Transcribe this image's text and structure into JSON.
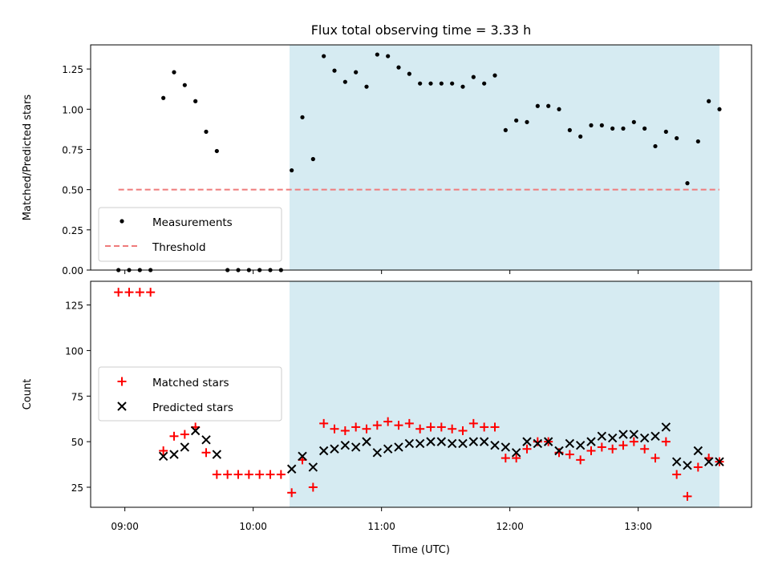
{
  "chart_data": [
    {
      "type": "scatter",
      "title": "Flux total observing time = 3.33 h",
      "xlabel": "",
      "ylabel": "Matched/Predicted stars",
      "ylim": [
        0,
        1.4
      ],
      "xlim": [
        "08:44",
        "13:53"
      ],
      "yticks": [
        0.0,
        0.25,
        0.5,
        0.75,
        1.0,
        1.25
      ],
      "ytick_labels": [
        "0.00",
        "0.25",
        "0.50",
        "0.75",
        "1.00",
        "1.25"
      ],
      "legend": [
        "Measurements",
        "Threshold"
      ],
      "legend_loc": "lower left",
      "grid": false,
      "shaded_interval": [
        "10:17",
        "13:38"
      ],
      "colors": {
        "measurements": "#000000",
        "threshold": "#ef7b7b",
        "shade": "#add8e6"
      },
      "series": [
        {
          "name": "Measurements",
          "x": [
            "08:57",
            "09:02",
            "09:07",
            "09:12",
            "09:18",
            "09:23",
            "09:28",
            "09:33",
            "09:38",
            "09:43",
            "09:48",
            "09:53",
            "09:58",
            "10:03",
            "10:08",
            "10:13",
            "10:18",
            "10:23",
            "10:28",
            "10:33",
            "10:38",
            "10:43",
            "10:48",
            "10:53",
            "10:58",
            "11:03",
            "11:08",
            "11:13",
            "11:18",
            "11:23",
            "11:28",
            "11:33",
            "11:38",
            "11:43",
            "11:48",
            "11:53",
            "11:58",
            "12:03",
            "12:08",
            "12:13",
            "12:18",
            "12:23",
            "12:28",
            "12:33",
            "12:38",
            "12:43",
            "12:48",
            "12:53",
            "12:58",
            "13:03",
            "13:08",
            "13:13",
            "13:18",
            "13:23",
            "13:28",
            "13:33",
            "13:38"
          ],
          "values": [
            0.0,
            0.0,
            0.0,
            0.0,
            1.07,
            1.23,
            1.15,
            1.05,
            0.86,
            0.74,
            0.0,
            0.0,
            0.0,
            0.0,
            0.0,
            0.0,
            0.62,
            0.95,
            0.69,
            1.33,
            1.24,
            1.17,
            1.23,
            1.14,
            1.34,
            1.33,
            1.26,
            1.22,
            1.16,
            1.16,
            1.16,
            1.16,
            1.14,
            1.2,
            1.16,
            1.21,
            0.87,
            0.93,
            0.92,
            1.02,
            1.02,
            1.0,
            0.87,
            0.83,
            0.9,
            0.9,
            0.88,
            0.88,
            0.92,
            0.88,
            0.77,
            0.86,
            0.82,
            0.54,
            0.8,
            1.05,
            1.0
          ]
        },
        {
          "name": "Threshold",
          "style": "dashed",
          "x": [
            "08:57",
            "13:38"
          ],
          "values": [
            0.5,
            0.5
          ]
        }
      ]
    },
    {
      "type": "scatter",
      "title": "",
      "xlabel": "Time (UTC)",
      "ylabel": "Count",
      "ylim": [
        14,
        138
      ],
      "xlim": [
        "08:44",
        "13:53"
      ],
      "xticks": [
        "09:00",
        "10:00",
        "11:00",
        "12:00",
        "13:00"
      ],
      "yticks": [
        25,
        50,
        75,
        100,
        125
      ],
      "legend": [
        "Matched stars",
        "Predicted stars"
      ],
      "legend_loc": "center left",
      "grid": false,
      "shaded_interval": [
        "10:17",
        "13:38"
      ],
      "colors": {
        "matched": "#ff0000",
        "predicted": "#000000",
        "shade": "#add8e6"
      },
      "series": [
        {
          "name": "Matched stars",
          "marker": "+",
          "x": [
            "08:57",
            "09:02",
            "09:07",
            "09:12",
            "09:18",
            "09:23",
            "09:28",
            "09:33",
            "09:38",
            "09:43",
            "09:48",
            "09:53",
            "09:58",
            "10:03",
            "10:08",
            "10:13",
            "10:18",
            "10:23",
            "10:28",
            "10:33",
            "10:38",
            "10:43",
            "10:48",
            "10:53",
            "10:58",
            "11:03",
            "11:08",
            "11:13",
            "11:18",
            "11:23",
            "11:28",
            "11:33",
            "11:38",
            "11:43",
            "11:48",
            "11:53",
            "11:58",
            "12:03",
            "12:08",
            "12:13",
            "12:18",
            "12:23",
            "12:28",
            "12:33",
            "12:38",
            "12:43",
            "12:48",
            "12:53",
            "12:58",
            "13:03",
            "13:08",
            "13:13",
            "13:18",
            "13:23",
            "13:28",
            "13:33",
            "13:38"
          ],
          "values": [
            132,
            132,
            132,
            132,
            45,
            53,
            54,
            58,
            44,
            32,
            32,
            32,
            32,
            32,
            32,
            32,
            22,
            40,
            25,
            60,
            57,
            56,
            58,
            57,
            59,
            61,
            59,
            60,
            57,
            58,
            58,
            57,
            56,
            60,
            58,
            58,
            41,
            41,
            46,
            50,
            50,
            44,
            43,
            40,
            45,
            47,
            46,
            48,
            50,
            46,
            41,
            50,
            32,
            20,
            36,
            41,
            39
          ]
        },
        {
          "name": "Predicted stars",
          "marker": "x",
          "x": [
            "09:18",
            "09:23",
            "09:28",
            "09:33",
            "09:38",
            "09:43",
            "10:18",
            "10:23",
            "10:28",
            "10:33",
            "10:38",
            "10:43",
            "10:48",
            "10:53",
            "10:58",
            "11:03",
            "11:08",
            "11:13",
            "11:18",
            "11:23",
            "11:28",
            "11:33",
            "11:38",
            "11:43",
            "11:48",
            "11:53",
            "11:58",
            "12:03",
            "12:08",
            "12:13",
            "12:18",
            "12:23",
            "12:28",
            "12:33",
            "12:38",
            "12:43",
            "12:48",
            "12:53",
            "12:58",
            "13:03",
            "13:08",
            "13:13",
            "13:18",
            "13:23",
            "13:28",
            "13:33",
            "13:38"
          ],
          "values": [
            42,
            43,
            47,
            56,
            51,
            43,
            35,
            42,
            36,
            45,
            46,
            48,
            47,
            50,
            44,
            46,
            47,
            49,
            49,
            50,
            50,
            49,
            49,
            50,
            50,
            48,
            47,
            44,
            50,
            49,
            50,
            45,
            49,
            48,
            50,
            53,
            52,
            54,
            54,
            52,
            53,
            58,
            39,
            37,
            45,
            39,
            39
          ]
        }
      ]
    }
  ]
}
